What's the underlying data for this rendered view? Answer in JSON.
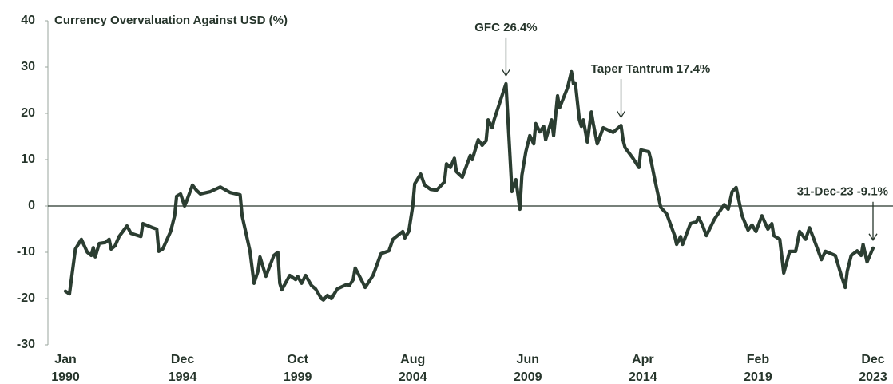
{
  "chart_data": {
    "type": "line",
    "title": "Currency Overvaluation Against USD (%)",
    "color": "#2b3d31",
    "ylim": [
      -30,
      40
    ],
    "yticks": [
      -30,
      -20,
      -10,
      0,
      10,
      20,
      30,
      40
    ],
    "xlim": [
      "1990-01",
      "2023-12"
    ],
    "xticks": [
      {
        "value": "1990-01",
        "label": [
          "Jan",
          "1990"
        ]
      },
      {
        "value": "1994-12",
        "label": [
          "Dec",
          "1994"
        ]
      },
      {
        "value": "1999-10",
        "label": [
          "Oct",
          "1999"
        ]
      },
      {
        "value": "2004-08",
        "label": [
          "Aug",
          "2004"
        ]
      },
      {
        "value": "2009-06",
        "label": [
          "Jun",
          "2009"
        ]
      },
      {
        "value": "2014-04",
        "label": [
          "Apr",
          "2014"
        ]
      },
      {
        "value": "2019-02",
        "label": [
          "Feb",
          "2019"
        ]
      },
      {
        "value": "2023-12",
        "label": [
          "Dec",
          "2023"
        ]
      }
    ],
    "annotations": [
      {
        "text": "GFC 26.4%",
        "x": "2008-07"
      },
      {
        "text": "Taper Tantrum 17.4%",
        "x": "2013-05"
      },
      {
        "text": "31-Dec-23  -9.1%",
        "x": "2023-12"
      }
    ],
    "x": [
      "1990-01",
      "1990-03",
      "1990-06",
      "1990-09",
      "1990-12",
      "1991-02",
      "1991-03",
      "1991-04",
      "1991-06",
      "1991-09",
      "1991-11",
      "1991-12",
      "1992-02",
      "1992-04",
      "1992-08",
      "1992-10",
      "1993-03",
      "1993-04",
      "1993-09",
      "1993-11",
      "1993-12",
      "1994-02",
      "1994-06",
      "1994-08",
      "1994-09",
      "1994-11",
      "1995-01",
      "1995-02",
      "1995-05",
      "1995-07",
      "1995-09",
      "1996-02",
      "1996-07",
      "1996-12",
      "1997-05",
      "1997-06",
      "1997-10",
      "1997-12",
      "1998-02",
      "1998-03",
      "1998-06",
      "1998-10",
      "1998-12",
      "1999-01",
      "1999-02",
      "1999-06",
      "1999-09",
      "1999-10",
      "1999-12",
      "2000-02",
      "2000-05",
      "2000-07",
      "2000-10",
      "2000-11",
      "2001-01",
      "2001-03",
      "2001-06",
      "2001-11",
      "2001-12",
      "2002-02",
      "2002-03",
      "2002-07",
      "2002-08",
      "2002-12",
      "2003-04",
      "2003-08",
      "2003-10",
      "2004-03",
      "2004-04",
      "2004-06",
      "2004-08",
      "2004-09",
      "2004-12",
      "2005-02",
      "2005-05",
      "2005-08",
      "2005-12",
      "2006-01",
      "2006-03",
      "2006-05",
      "2006-06",
      "2006-09",
      "2007-01",
      "2007-02",
      "2007-05",
      "2007-07",
      "2007-09",
      "2007-10",
      "2007-12",
      "2008-01",
      "2008-05",
      "2008-07",
      "2008-08",
      "2008-09",
      "2008-10",
      "2008-12",
      "2009-02",
      "2009-03",
      "2009-05",
      "2009-07",
      "2009-09",
      "2009-10",
      "2009-12",
      "2010-02",
      "2010-03",
      "2010-06",
      "2010-07",
      "2010-09",
      "2010-10",
      "2011-02",
      "2011-04",
      "2011-05",
      "2011-06",
      "2011-08",
      "2011-09",
      "2011-10",
      "2011-12",
      "2012-02",
      "2012-03",
      "2012-05",
      "2012-08",
      "2013-01",
      "2013-05",
      "2013-06",
      "2013-07",
      "2013-11",
      "2014-02",
      "2014-03",
      "2014-07",
      "2014-08",
      "2014-10",
      "2015-01",
      "2015-04",
      "2015-08",
      "2015-09",
      "2015-11",
      "2015-12",
      "2016-04",
      "2016-07",
      "2016-08",
      "2016-10",
      "2016-12",
      "2017-04",
      "2017-09",
      "2017-11",
      "2018-01",
      "2018-03",
      "2018-06",
      "2018-09",
      "2018-11",
      "2019-01",
      "2019-04",
      "2019-07",
      "2019-09",
      "2019-10",
      "2020-01",
      "2020-03",
      "2020-06",
      "2020-09",
      "2020-11",
      "2021-02",
      "2021-04",
      "2021-07",
      "2021-10",
      "2021-12",
      "2022-05",
      "2022-08",
      "2022-10",
      "2022-11",
      "2023-01",
      "2023-04",
      "2023-06",
      "2023-07",
      "2023-09",
      "2023-12"
    ],
    "values": [
      -18.4,
      -19.0,
      -9.3,
      -7.2,
      -10.0,
      -10.7,
      -9.0,
      -11.0,
      -8.1,
      -7.9,
      -7.2,
      -9.3,
      -8.6,
      -6.6,
      -4.3,
      -5.9,
      -6.6,
      -3.8,
      -4.7,
      -5.0,
      -9.8,
      -9.3,
      -5.5,
      -2.1,
      2.1,
      2.6,
      0,
      1.0,
      4.5,
      3.4,
      2.6,
      3.1,
      4.1,
      2.9,
      2.4,
      -2.1,
      -9.8,
      -16.7,
      -14.1,
      -11.0,
      -15.2,
      -10.7,
      -10.0,
      -16.7,
      -18.1,
      -15.0,
      -15.9,
      -15.2,
      -16.7,
      -15.0,
      -17.2,
      -17.9,
      -20.0,
      -20.3,
      -19.3,
      -20.0,
      -17.9,
      -16.9,
      -17.2,
      -15.9,
      -13.4,
      -16.7,
      -17.6,
      -15.0,
      -10.3,
      -9.7,
      -7.2,
      -5.5,
      -6.9,
      -5.5,
      0,
      4.8,
      6.9,
      4.5,
      3.6,
      3.4,
      5.2,
      9.1,
      8.3,
      10.3,
      7.4,
      6.2,
      10.9,
      10.0,
      14.3,
      13.1,
      14.1,
      18.6,
      16.9,
      18.6,
      23.8,
      26.4,
      18.6,
      10.9,
      3.1,
      5.7,
      -0.7,
      6.6,
      11.7,
      15.2,
      13.4,
      17.8,
      16.0,
      17.2,
      14.3,
      18.6,
      15.2,
      23.8,
      21.2,
      25.5,
      29.0,
      26.4,
      26.4,
      18.6,
      17.2,
      18.6,
      13.8,
      20.3,
      17.8,
      13.4,
      16.9,
      15.9,
      17.4,
      14.3,
      12.6,
      10.3,
      8.3,
      12.1,
      11.7,
      10.0,
      5.7,
      -0.3,
      -1.7,
      -6.4,
      -8.3,
      -6.6,
      -8.3,
      -3.8,
      -3.4,
      -2.4,
      -4.1,
      -6.4,
      -2.9,
      0.3,
      -0.7,
      3.1,
      4.0,
      -2.1,
      -5.2,
      -4.1,
      -5.5,
      -2.1,
      -5.0,
      -3.8,
      -6.4,
      -7.2,
      -14.5,
      -9.8,
      -9.8,
      -5.5,
      -7.2,
      -4.7,
      -8.1,
      -11.6,
      -9.8,
      -10.7,
      -15.0,
      -17.6,
      -14.1,
      -10.7,
      -9.7,
      -10.7,
      -8.3,
      -12.1,
      -9.1
    ]
  }
}
